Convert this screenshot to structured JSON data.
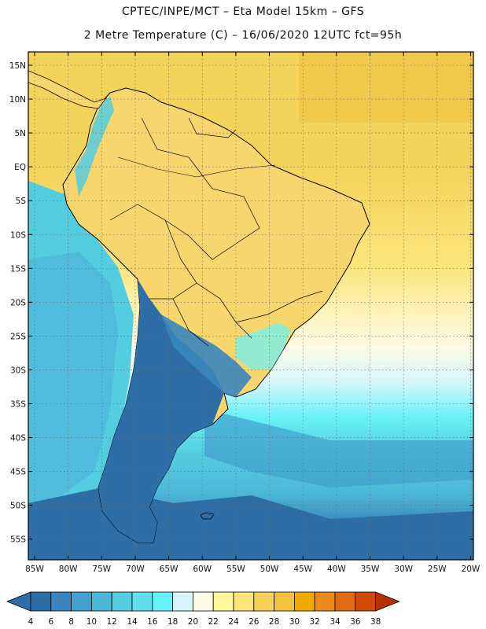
{
  "header": {
    "line1": "CPTEC/INPE/MCT –  Eta Model 15km – GFS",
    "line2": "2 Metre Temperature (C) – 16/06/2020 12UTC fct=95h"
  },
  "axes": {
    "lat_labels": [
      "15N",
      "10N",
      "5N",
      "EQ",
      "5S",
      "10S",
      "15S",
      "20S",
      "25S",
      "30S",
      "35S",
      "40S",
      "45S",
      "50S",
      "55S"
    ],
    "lon_labels": [
      "85W",
      "80W",
      "75W",
      "70W",
      "65W",
      "60W",
      "55W",
      "50W",
      "45W",
      "40W",
      "35W",
      "30W",
      "25W",
      "20W"
    ]
  },
  "colorbar": {
    "ticks": [
      "4",
      "6",
      "8",
      "10",
      "12",
      "14",
      "16",
      "18",
      "20",
      "22",
      "24",
      "26",
      "28",
      "30",
      "32",
      "34",
      "36",
      "38"
    ],
    "colors": [
      "#2e6ea6",
      "#3886bd",
      "#41a0cc",
      "#4cb8d8",
      "#55cde0",
      "#5fe0ea",
      "#66f2f8",
      "#d6f6fb",
      "#fffbe6",
      "#fff59a",
      "#fbe57a",
      "#f3d35a",
      "#f0c240",
      "#f2a900",
      "#ea8a1a",
      "#e06a10",
      "#cf4a05",
      "#b83000"
    ]
  },
  "map": {
    "ocean_colors": {
      "deep": "#2e6ea6",
      "cold": "#3886bd",
      "cool": "#4cb8d8",
      "mild": "#5fe0ea",
      "warm": "#f3d35a",
      "hot": "#f0c240"
    }
  }
}
